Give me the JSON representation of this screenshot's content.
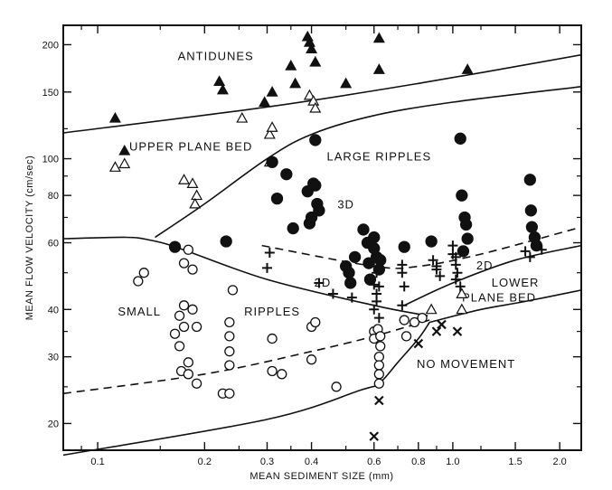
{
  "chart_data": {
    "type": "scatter",
    "title": "",
    "xlabel": "MEAN SEDIMENT SIZE (mm)",
    "ylabel": "MEAN FLOW VELOCITY (cm/sec)",
    "x_scale": "log",
    "y_scale": "log",
    "xlim": [
      0.08,
      2.3
    ],
    "ylim": [
      17,
      225
    ],
    "grid": false,
    "x_ticks": [
      {
        "v": 0.1,
        "label": "0.1"
      },
      {
        "v": 0.2,
        "label": "0.2"
      },
      {
        "v": 0.3,
        "label": "0.3"
      },
      {
        "v": 0.4,
        "label": "0.4"
      },
      {
        "v": 0.6,
        "label": "0.6"
      },
      {
        "v": 0.8,
        "label": "0.8"
      },
      {
        "v": 1.0,
        "label": "1.0"
      },
      {
        "v": 1.5,
        "label": "1.5"
      },
      {
        "v": 2.0,
        "label": "2.0"
      }
    ],
    "x_minor_ticks": [
      0.09,
      0.15,
      0.25,
      0.35,
      0.5,
      0.7,
      0.9,
      1.2
    ],
    "y_ticks": [
      {
        "v": 20,
        "label": "20"
      },
      {
        "v": 30,
        "label": "30"
      },
      {
        "v": 40,
        "label": "40"
      },
      {
        "v": 60,
        "label": "60"
      },
      {
        "v": 80,
        "label": "80"
      },
      {
        "v": 100,
        "label": "100"
      },
      {
        "v": 150,
        "label": "150"
      },
      {
        "v": 200,
        "label": "200"
      }
    ],
    "y_minor_ticks": [
      25,
      35,
      50,
      70,
      90,
      120
    ],
    "regions": [
      {
        "text": "ANTIDUNES",
        "x": 0.215,
        "y": 182
      },
      {
        "text": "UPPER PLANE BED",
        "x": 0.183,
        "y": 105
      },
      {
        "text": "LARGE RIPPLES",
        "x": 0.62,
        "y": 99
      },
      {
        "text": "3D",
        "x": 0.5,
        "y": 74
      },
      {
        "text": "2D",
        "x": 0.43,
        "y": 46
      },
      {
        "text": "2D",
        "x": 1.23,
        "y": 51
      },
      {
        "text": "SMALL",
        "x": 0.131,
        "y": 38.6
      },
      {
        "text": "RIPPLES",
        "x": 0.31,
        "y": 38.6
      },
      {
        "text": "LOWER",
        "x": 1.5,
        "y": 46
      },
      {
        "text": "PLANE BED",
        "x": 1.35,
        "y": 42
      },
      {
        "text": "NO MOVEMENT",
        "x": 1.09,
        "y": 28
      }
    ],
    "legend_markers": [
      {
        "marker": "filled-triangle",
        "x": 0.119,
        "y": 105
      },
      {
        "marker": "open-triangle",
        "x": 0.119,
        "y": 97
      }
    ],
    "boundaries": [
      {
        "style": "solid",
        "points": [
          [
            0.08,
            117
          ],
          [
            0.3,
            137
          ],
          [
            0.8,
            158
          ],
          [
            2.3,
            188
          ]
        ]
      },
      {
        "style": "solid",
        "points": [
          [
            0.145,
            62
          ],
          [
            0.2,
            76
          ],
          [
            0.3,
            100
          ],
          [
            0.4,
            116
          ],
          [
            0.6,
            130
          ],
          [
            1.0,
            141
          ],
          [
            2.3,
            155
          ]
        ]
      },
      {
        "style": "solid",
        "points": [
          [
            0.08,
            61.5
          ],
          [
            0.12,
            62
          ],
          [
            0.14,
            61
          ],
          [
            0.17,
            58
          ],
          [
            0.3,
            48
          ],
          [
            0.6,
            41
          ],
          [
            0.85,
            38.5
          ]
        ]
      },
      {
        "style": "solid",
        "points": [
          [
            0.73,
            41
          ],
          [
            1.0,
            47
          ],
          [
            1.5,
            54
          ],
          [
            2.3,
            59
          ]
        ]
      },
      {
        "style": "solid",
        "points": [
          [
            0.86,
            37
          ],
          [
            1.2,
            40
          ],
          [
            1.6,
            42
          ],
          [
            2.3,
            45
          ]
        ]
      },
      {
        "style": "solid",
        "points": [
          [
            0.08,
            16.5
          ],
          [
            0.3,
            20.5
          ],
          [
            0.55,
            24.5
          ],
          [
            0.62,
            25.5
          ],
          [
            0.7,
            29
          ],
          [
            0.8,
            33.5
          ],
          [
            0.86,
            37
          ]
        ]
      },
      {
        "style": "dashed",
        "points": [
          [
            0.08,
            24
          ],
          [
            0.2,
            27
          ],
          [
            0.4,
            31
          ],
          [
            0.6,
            34
          ],
          [
            0.86,
            37.5
          ]
        ]
      },
      {
        "style": "dashed",
        "points": [
          [
            0.29,
            59
          ],
          [
            0.6,
            52
          ],
          [
            0.8,
            52
          ],
          [
            1.2,
            56
          ],
          [
            2.3,
            66
          ]
        ]
      }
    ],
    "series": [
      {
        "marker": "filled-triangle",
        "points": [
          [
            0.112,
            128
          ],
          [
            0.22,
            160
          ],
          [
            0.225,
            152
          ],
          [
            0.295,
            141
          ],
          [
            0.31,
            150
          ],
          [
            0.35,
            176
          ],
          [
            0.36,
            158
          ],
          [
            0.39,
            210
          ],
          [
            0.395,
            203
          ],
          [
            0.4,
            195
          ],
          [
            0.41,
            180
          ],
          [
            0.5,
            158
          ],
          [
            0.62,
            208
          ],
          [
            0.62,
            172
          ],
          [
            1.1,
            172
          ]
        ]
      },
      {
        "marker": "open-triangle",
        "points": [
          [
            0.112,
            95
          ],
          [
            0.175,
            88
          ],
          [
            0.185,
            86
          ],
          [
            0.19,
            80
          ],
          [
            0.188,
            76
          ],
          [
            0.255,
            128
          ],
          [
            0.305,
            116
          ],
          [
            0.31,
            121
          ],
          [
            0.305,
            98
          ],
          [
            0.395,
            147
          ],
          [
            0.405,
            142
          ],
          [
            0.41,
            136
          ],
          [
            0.87,
            40
          ],
          [
            1.06,
            44
          ],
          [
            1.06,
            40
          ]
        ]
      },
      {
        "marker": "filled-circle",
        "points": [
          [
            0.165,
            58.5
          ],
          [
            0.23,
            60.5
          ],
          [
            0.31,
            98
          ],
          [
            0.32,
            78.5
          ],
          [
            0.34,
            91
          ],
          [
            0.355,
            65.5
          ],
          [
            0.39,
            82
          ],
          [
            0.395,
            67.5
          ],
          [
            0.4,
            70
          ],
          [
            0.405,
            86
          ],
          [
            0.41,
            85
          ],
          [
            0.415,
            76
          ],
          [
            0.42,
            73
          ],
          [
            0.41,
            112
          ],
          [
            0.5,
            52
          ],
          [
            0.51,
            50
          ],
          [
            0.515,
            47
          ],
          [
            0.53,
            55
          ],
          [
            0.56,
            65
          ],
          [
            0.575,
            60
          ],
          [
            0.58,
            53
          ],
          [
            0.585,
            48
          ],
          [
            0.6,
            62
          ],
          [
            0.6,
            58
          ],
          [
            0.61,
            55
          ],
          [
            0.62,
            51
          ],
          [
            0.625,
            54
          ],
          [
            0.73,
            58.5
          ],
          [
            0.87,
            60.5
          ],
          [
            1.05,
            113
          ],
          [
            1.06,
            80
          ],
          [
            1.08,
            70
          ],
          [
            1.09,
            67
          ],
          [
            1.1,
            61.5
          ],
          [
            1.07,
            57
          ],
          [
            1.65,
            88
          ],
          [
            1.66,
            73
          ],
          [
            1.67,
            66
          ],
          [
            1.7,
            62
          ],
          [
            1.72,
            59
          ]
        ]
      },
      {
        "marker": "open-circle",
        "points": [
          [
            0.135,
            50
          ],
          [
            0.13,
            47.5
          ],
          [
            0.18,
            57.5
          ],
          [
            0.175,
            53
          ],
          [
            0.185,
            51
          ],
          [
            0.175,
            41
          ],
          [
            0.17,
            38.5
          ],
          [
            0.175,
            36
          ],
          [
            0.165,
            34.5
          ],
          [
            0.17,
            32
          ],
          [
            0.185,
            40
          ],
          [
            0.19,
            36
          ],
          [
            0.18,
            29
          ],
          [
            0.172,
            27.5
          ],
          [
            0.18,
            27
          ],
          [
            0.19,
            25.5
          ],
          [
            0.225,
            24
          ],
          [
            0.235,
            24
          ],
          [
            0.235,
            37
          ],
          [
            0.235,
            34
          ],
          [
            0.235,
            31
          ],
          [
            0.235,
            28.5
          ],
          [
            0.24,
            45
          ],
          [
            0.31,
            33.5
          ],
          [
            0.31,
            27.5
          ],
          [
            0.33,
            27
          ],
          [
            0.4,
            36
          ],
          [
            0.41,
            37
          ],
          [
            0.4,
            29.5
          ],
          [
            0.47,
            25
          ],
          [
            0.6,
            35
          ],
          [
            0.6,
            33.5
          ],
          [
            0.615,
            35.5
          ],
          [
            0.625,
            34
          ],
          [
            0.625,
            32
          ],
          [
            0.62,
            30
          ],
          [
            0.62,
            28.5
          ],
          [
            0.62,
            27
          ],
          [
            0.62,
            25.5
          ],
          [
            0.73,
            37.5
          ],
          [
            0.74,
            34
          ],
          [
            0.78,
            37
          ],
          [
            0.82,
            38
          ]
        ]
      },
      {
        "marker": "plus",
        "points": [
          [
            0.305,
            56.5
          ],
          [
            0.3,
            51.5
          ],
          [
            0.42,
            47
          ],
          [
            0.46,
            44
          ],
          [
            0.52,
            43
          ],
          [
            0.6,
            54
          ],
          [
            0.61,
            50
          ],
          [
            0.6,
            46.5
          ],
          [
            0.62,
            46
          ],
          [
            0.61,
            44
          ],
          [
            0.61,
            42
          ],
          [
            0.6,
            40
          ],
          [
            0.62,
            38
          ],
          [
            0.72,
            52.5
          ],
          [
            0.72,
            50
          ],
          [
            0.73,
            46
          ],
          [
            0.72,
            41
          ],
          [
            0.88,
            54
          ],
          [
            0.9,
            52
          ],
          [
            0.9,
            51
          ],
          [
            0.92,
            49
          ],
          [
            1.0,
            59
          ],
          [
            1.02,
            55
          ],
          [
            1.02,
            52.5
          ],
          [
            1.03,
            50
          ],
          [
            1.02,
            48
          ],
          [
            1.05,
            46
          ],
          [
            1.0,
            56
          ],
          [
            1.6,
            57
          ],
          [
            1.65,
            55
          ],
          [
            1.78,
            57.5
          ]
        ]
      },
      {
        "marker": "cross",
        "points": [
          [
            0.6,
            18.5
          ],
          [
            0.62,
            23
          ],
          [
            0.8,
            32.5
          ],
          [
            0.9,
            35
          ],
          [
            0.93,
            36.5
          ],
          [
            1.03,
            35
          ]
        ]
      }
    ]
  }
}
